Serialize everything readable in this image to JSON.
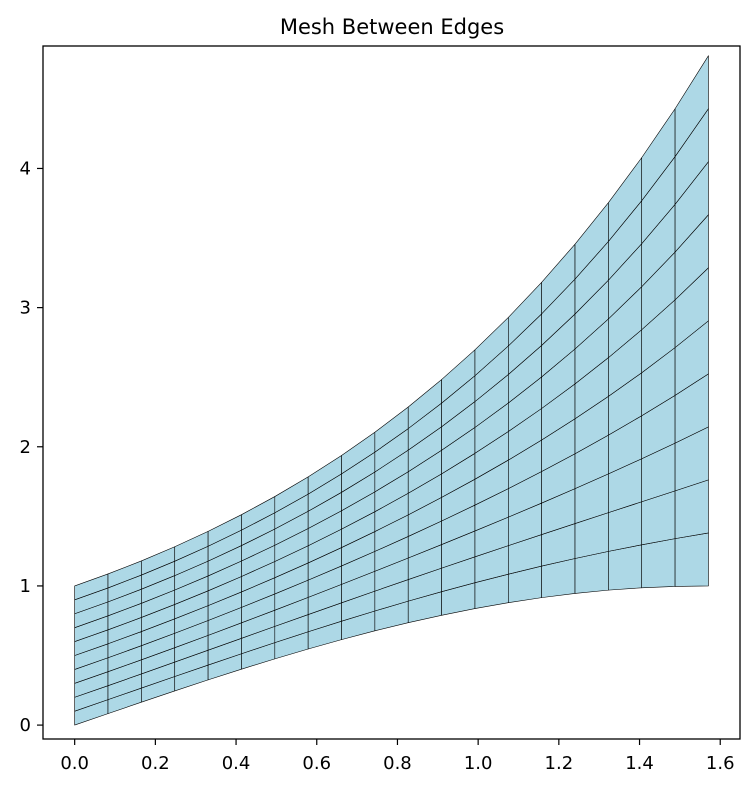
{
  "chart_data": {
    "type": "mesh",
    "title": "Mesh Between Edges",
    "xlabel": "",
    "ylabel": "",
    "xlim": [
      -0.0785,
      1.649
    ],
    "ylim": [
      -0.1,
      4.88
    ],
    "xticks": [
      0.0,
      0.2,
      0.4,
      0.6,
      0.8,
      1.0,
      1.2,
      1.4,
      1.6
    ],
    "xtick_labels": [
      "0.0",
      "0.2",
      "0.4",
      "0.6",
      "0.8",
      "1.0",
      "1.2",
      "1.4",
      "1.6"
    ],
    "yticks": [
      0,
      1,
      2,
      3,
      4
    ],
    "ytick_labels": [
      "0",
      "1",
      "2",
      "3",
      "4"
    ],
    "grid": false,
    "legend": "none",
    "fill_color": "#add8e6",
    "edge_color": "#000000",
    "x": [
      0.0,
      0.0826,
      0.1653,
      0.248,
      0.3307,
      0.4134,
      0.496,
      0.5787,
      0.6614,
      0.744,
      0.8267,
      0.9094,
      0.9921,
      1.0748,
      1.1574,
      1.2401,
      1.3228,
      1.4054,
      1.4881,
      1.5708
    ],
    "lower_edge": [
      0.0,
      0.0825,
      0.1645,
      0.2455,
      0.3247,
      0.4017,
      0.4759,
      0.5469,
      0.6142,
      0.6773,
      0.7357,
      0.7891,
      0.8372,
      0.8795,
      0.9159,
      0.9461,
      0.9699,
      0.9866,
      0.9967,
      1.0
    ],
    "upper_edge": [
      1.0,
      1.0861,
      1.1797,
      1.2815,
      1.3919,
      1.512,
      1.6422,
      1.7837,
      1.9374,
      2.1043,
      2.2858,
      2.4829,
      2.6969,
      2.9294,
      3.1818,
      3.4561,
      3.7539,
      4.0778,
      4.429,
      4.8105
    ],
    "n_rows": 10
  }
}
